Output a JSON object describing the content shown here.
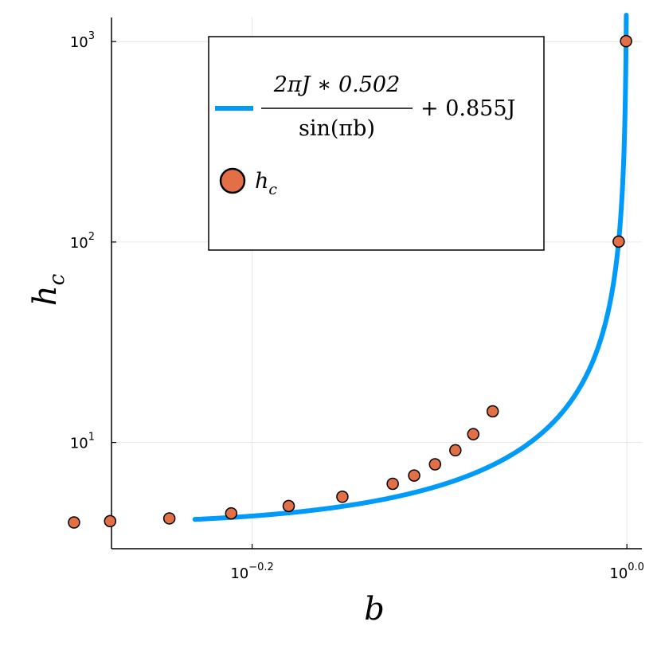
{
  "chart_data": {
    "type": "scatter",
    "title": "",
    "xlabel": "b",
    "ylabel": "h_c",
    "xscale": "log10",
    "yscale": "log10",
    "xlim_log10": [
      -0.275,
      0.008
    ],
    "ylim_log10": [
      0.47,
      3.12
    ],
    "grid": true,
    "legend_placement": "top-center",
    "x_ticks": [
      {
        "base": "10",
        "exponent": "−0.2",
        "value": 0.631
      },
      {
        "base": "10",
        "exponent": "0.0",
        "value": 1.0
      }
    ],
    "y_ticks": [
      {
        "base": "10",
        "exponent": "1",
        "value": 10
      },
      {
        "base": "10",
        "exponent": "2",
        "value": 100
      },
      {
        "base": "10",
        "exponent": "3",
        "value": 1000
      }
    ],
    "series": [
      {
        "name": "2πJ * 0.502 / sin(πb) + 0.855J",
        "kind": "line",
        "color": "#009af9",
        "formula": {
          "A": 0.502,
          "C": 0.855
        },
        "legend": {
          "numerator": "2πJ ∗ 0.502",
          "denominator": "sin(πb)",
          "suffix": "+ 0.855J"
        }
      },
      {
        "name": "h_c",
        "kind": "scatter",
        "color": "#e26f46",
        "legend": {
          "main": "h",
          "sub": "c"
        },
        "x": [
          0.507,
          0.53,
          0.57,
          0.615,
          0.66,
          0.705,
          0.75,
          0.77,
          0.79,
          0.81,
          0.828,
          0.848,
          0.99,
          0.999
        ],
        "y": [
          3.99,
          4.05,
          4.18,
          4.43,
          4.82,
          5.36,
          6.22,
          6.84,
          7.78,
          9.14,
          11.0,
          14.3,
          100.5,
          1005
        ]
      }
    ]
  }
}
